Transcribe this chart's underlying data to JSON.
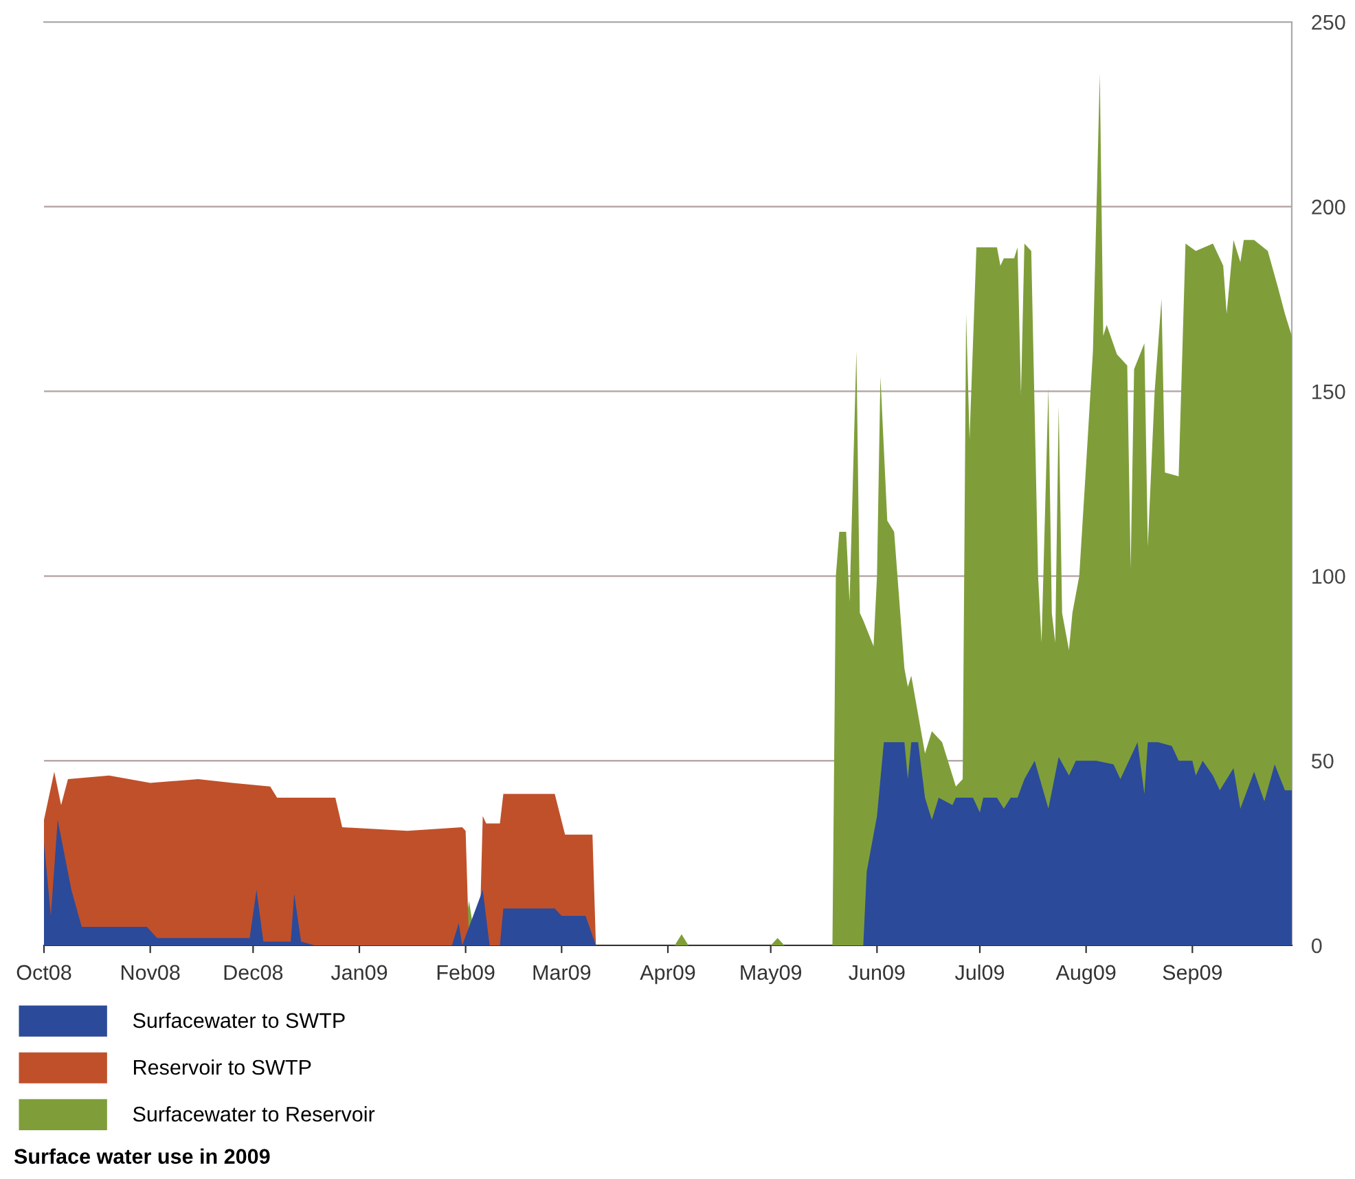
{
  "chart_data": {
    "type": "area",
    "title": "Surface water use in 2009",
    "xlim": [
      "2008-10-01",
      "2009-09-30"
    ],
    "xticks": [
      {
        "value": "2008-10-01",
        "label": "Oct08"
      },
      {
        "value": "2008-11-01",
        "label": "Nov08"
      },
      {
        "value": "2008-12-01",
        "label": "Dec08"
      },
      {
        "value": "2009-01-01",
        "label": "Jan09"
      },
      {
        "value": "2009-02-01",
        "label": "Feb09"
      },
      {
        "value": "2009-03-01",
        "label": "Mar09"
      },
      {
        "value": "2009-04-01",
        "label": "Apr09"
      },
      {
        "value": "2009-05-01",
        "label": "May09"
      },
      {
        "value": "2009-06-01",
        "label": "Jun09"
      },
      {
        "value": "2009-07-01",
        "label": "Jul09"
      },
      {
        "value": "2009-08-01",
        "label": "Aug09"
      },
      {
        "value": "2009-09-01",
        "label": "Sep09"
      }
    ],
    "ylim": [
      0,
      250
    ],
    "yticks": [
      0,
      50,
      100,
      150,
      200,
      250
    ],
    "grid": "y",
    "legend": "bottom",
    "series": [
      {
        "name": "Surfacewater to SWTP",
        "color": "#2b4a9a",
        "x": [
          "2008-10-01",
          "2008-10-03",
          "2008-10-05",
          "2008-10-09",
          "2008-10-12",
          "2008-10-31",
          "2008-11-03",
          "2008-11-30",
          "2008-12-02",
          "2008-12-04",
          "2008-12-12",
          "2008-12-13",
          "2008-12-15",
          "2008-12-19",
          "2009-01-28",
          "2009-01-30",
          "2009-01-31",
          "2009-02-06",
          "2009-02-08",
          "2009-02-11",
          "2009-02-12",
          "2009-02-27",
          "2009-03-01",
          "2009-03-08",
          "2009-03-11",
          "2009-05-28",
          "2009-05-29",
          "2009-06-01",
          "2009-06-03",
          "2009-06-09",
          "2009-06-10",
          "2009-06-11",
          "2009-06-13",
          "2009-06-15",
          "2009-06-17",
          "2009-06-19",
          "2009-06-23",
          "2009-06-24",
          "2009-06-29",
          "2009-07-01",
          "2009-07-02",
          "2009-07-06",
          "2009-07-08",
          "2009-07-10",
          "2009-07-12",
          "2009-07-14",
          "2009-07-17",
          "2009-07-21",
          "2009-07-24",
          "2009-07-27",
          "2009-07-29",
          "2009-08-04",
          "2009-08-09",
          "2009-08-11",
          "2009-08-16",
          "2009-08-18",
          "2009-08-19",
          "2009-08-22",
          "2009-08-26",
          "2009-08-28",
          "2009-09-01",
          "2009-09-02",
          "2009-09-04",
          "2009-09-07",
          "2009-09-09",
          "2009-09-13",
          "2009-09-15",
          "2009-09-19",
          "2009-09-22",
          "2009-09-25",
          "2009-09-28",
          "2009-09-30"
        ],
        "values": [
          28,
          8,
          34,
          15,
          5,
          5,
          2,
          2,
          15,
          1,
          1,
          14,
          1,
          0,
          0,
          6,
          0,
          15,
          0,
          0,
          10,
          10,
          8,
          8,
          0,
          0,
          20,
          35,
          55,
          55,
          45,
          55,
          55,
          40,
          34,
          40,
          38,
          40,
          40,
          36,
          40,
          40,
          37,
          40,
          40,
          45,
          50,
          37,
          51,
          46,
          50,
          50,
          49,
          45,
          55,
          41,
          55,
          55,
          54,
          50,
          50,
          46,
          50,
          46,
          42,
          48,
          37,
          47,
          39,
          49,
          42,
          42
        ]
      },
      {
        "name": "Reservoir to SWTP",
        "color": "#c0502a",
        "x": [
          "2008-10-01",
          "2008-10-04",
          "2008-10-06",
          "2008-10-08",
          "2008-10-20",
          "2008-11-01",
          "2008-11-15",
          "2008-11-25",
          "2008-12-06",
          "2008-12-08",
          "2008-12-25",
          "2008-12-27",
          "2009-01-15",
          "2009-01-31",
          "2009-02-01",
          "2009-02-02",
          "2009-02-05",
          "2009-02-06",
          "2009-02-07",
          "2009-02-11",
          "2009-02-12",
          "2009-02-27",
          "2009-03-02",
          "2009-03-10",
          "2009-03-11"
        ],
        "values": [
          34,
          47,
          38,
          45,
          46,
          44,
          45,
          44,
          43,
          40,
          40,
          32,
          31,
          32,
          31,
          0,
          0,
          35,
          33,
          33,
          41,
          41,
          30,
          30,
          0
        ]
      },
      {
        "name": "Surfacewater to Reservoir",
        "color": "#7f9e3a",
        "x": [
          "2008-10-01",
          "2009-01-31",
          "2009-02-02",
          "2009-02-04",
          "2009-04-03",
          "2009-04-05",
          "2009-04-07",
          "2009-05-01",
          "2009-05-03",
          "2009-05-05",
          "2009-05-19",
          "2009-05-20",
          "2009-05-21",
          "2009-05-23",
          "2009-05-24",
          "2009-05-26",
          "2009-05-27",
          "2009-05-28",
          "2009-05-31",
          "2009-06-01",
          "2009-06-02",
          "2009-06-04",
          "2009-06-06",
          "2009-06-09",
          "2009-06-10",
          "2009-06-11",
          "2009-06-15",
          "2009-06-17",
          "2009-06-20",
          "2009-06-24",
          "2009-06-26",
          "2009-06-27",
          "2009-06-28",
          "2009-06-30",
          "2009-07-06",
          "2009-07-07",
          "2009-07-08",
          "2009-07-11",
          "2009-07-12",
          "2009-07-13",
          "2009-07-14",
          "2009-07-16",
          "2009-07-18",
          "2009-07-19",
          "2009-07-21",
          "2009-07-22",
          "2009-07-23",
          "2009-07-24",
          "2009-07-25",
          "2009-07-27",
          "2009-07-28",
          "2009-07-30",
          "2009-08-01",
          "2009-08-03",
          "2009-08-05",
          "2009-08-06",
          "2009-08-07",
          "2009-08-10",
          "2009-08-13",
          "2009-08-14",
          "2009-08-15",
          "2009-08-18",
          "2009-08-19",
          "2009-08-21",
          "2009-08-23",
          "2009-08-24",
          "2009-08-28",
          "2009-08-30",
          "2009-09-02",
          "2009-09-07",
          "2009-09-10",
          "2009-09-11",
          "2009-09-13",
          "2009-09-15",
          "2009-09-16",
          "2009-09-19",
          "2009-09-23",
          "2009-09-26",
          "2009-09-28",
          "2009-09-30"
        ],
        "values": [
          0,
          0,
          12,
          0,
          0,
          3,
          0,
          0,
          2,
          0,
          0,
          100,
          112,
          112,
          93,
          161,
          90,
          88,
          81,
          100,
          154,
          115,
          112,
          75,
          70,
          73,
          52,
          58,
          55,
          43,
          45,
          171,
          137,
          189,
          189,
          184,
          186,
          186,
          189,
          149,
          190,
          188,
          100,
          82,
          151,
          90,
          82,
          146,
          90,
          80,
          90,
          100,
          130,
          161,
          236,
          165,
          168,
          160,
          157,
          102,
          156,
          163,
          108,
          150,
          175,
          128,
          127,
          190,
          188,
          190,
          184,
          171,
          191,
          185,
          191,
          191,
          188,
          178,
          171,
          165
        ]
      }
    ]
  }
}
